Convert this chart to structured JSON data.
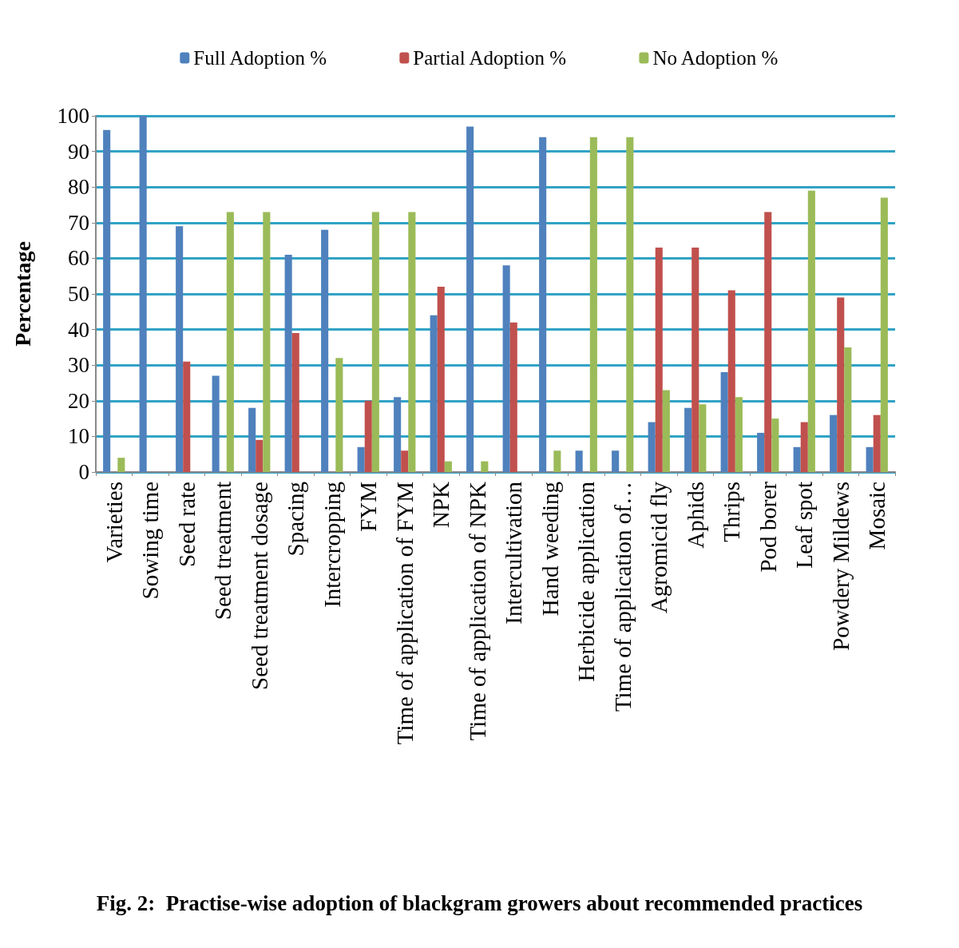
{
  "chart_data": {
    "type": "bar",
    "title": "Fig. 2:  Practise-wise adoption of blackgram growers about recommended practices",
    "ylabel": "Percentage",
    "categories": [
      "Varieties",
      "Sowing time",
      "Seed rate",
      "Seed treatment",
      "Seed treatment dosage",
      "Spacing",
      "Intercropping",
      "FYM",
      "Time of application of FYM",
      "NPK",
      "Time of application of NPK",
      "Intercultivation",
      "Hand weeding",
      "Herbicide application",
      "Time of application of…",
      "Agromicid fly",
      "Aphids",
      "Thrips",
      "Pod borer",
      "Leaf spot",
      "Powdery Mildews",
      "Mosaic"
    ],
    "series": [
      {
        "name": "Full Adoption %",
        "color": "#4f81bd",
        "values": [
          96,
          100,
          69,
          27,
          18,
          61,
          68,
          7,
          21,
          44,
          97,
          58,
          94,
          6,
          6,
          14,
          18,
          28,
          11,
          7,
          16,
          7
        ]
      },
      {
        "name": "Partial Adoption %",
        "color": "#c0504d",
        "values": [
          0,
          0,
          31,
          0,
          9,
          39,
          0,
          20,
          6,
          52,
          0,
          42,
          0,
          0,
          0,
          63,
          63,
          51,
          73,
          14,
          49,
          16
        ]
      },
      {
        "name": "No Adoption %",
        "color": "#9bbb59",
        "values": [
          4,
          0,
          0,
          73,
          73,
          0,
          32,
          73,
          73,
          3,
          3,
          0,
          6,
          94,
          94,
          23,
          19,
          21,
          15,
          79,
          35,
          77
        ]
      }
    ],
    "ylim": [
      0,
      100
    ],
    "yticks": [
      0,
      10,
      20,
      30,
      40,
      50,
      60,
      70,
      80,
      90,
      100
    ],
    "grid": "y",
    "legend": "top"
  }
}
